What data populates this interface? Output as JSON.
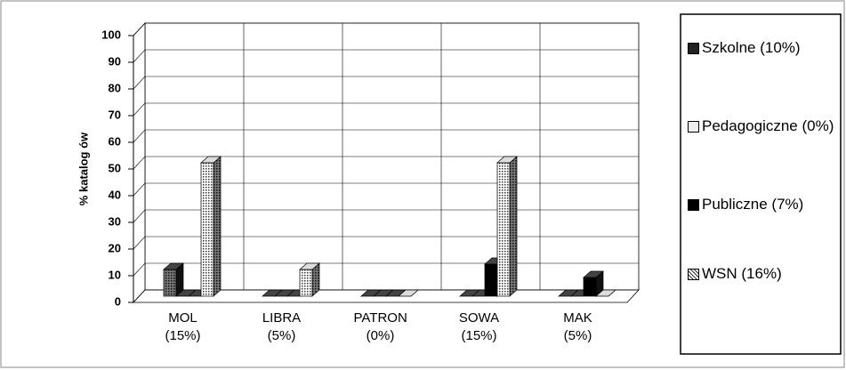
{
  "chart_data": {
    "type": "bar3d",
    "ylabel": "% katalog ów",
    "categories": [
      "MOL (15%)",
      "LIBRA (5%)",
      "PATRON (0%)",
      "SOWA (15%)",
      "MAK (5%)"
    ],
    "series": [
      {
        "name": "Szkolne (10%)",
        "color": "#222222",
        "values": [
          10,
          0,
          0,
          0,
          0
        ]
      },
      {
        "name": "Pedagogiczne (0%)",
        "color": "#eeeeee",
        "values": [
          0,
          0,
          0,
          0,
          0
        ]
      },
      {
        "name": "Publiczne (7%)",
        "color": "#000000",
        "values": [
          0,
          0,
          0,
          12,
          7
        ]
      },
      {
        "name": "WSN (16%)",
        "color": "#bbbbbb",
        "values": [
          50,
          10,
          0,
          50,
          0
        ]
      }
    ],
    "ylim": [
      0,
      100
    ],
    "yticks": [
      0,
      10,
      20,
      30,
      40,
      50,
      60,
      70,
      80,
      90,
      100
    ],
    "grid": true
  }
}
